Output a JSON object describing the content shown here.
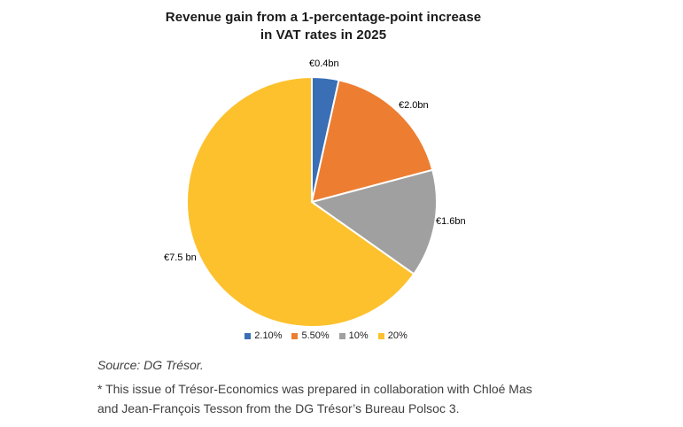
{
  "header": {
    "title_lines": [
      "Revenue gain from a 1-percentage-point increase",
      "in VAT rates in 2025"
    ]
  },
  "chart_data": {
    "type": "pie",
    "title": "Revenue gain from a 1-percentage-point increase in VAT rates in 2025",
    "unit": "EUR bn",
    "total": 11.5,
    "start_angle_deg": 0,
    "direction": "clockwise",
    "legend_position": "bottom",
    "slices": [
      {
        "label": "2.10%",
        "value": 0.4,
        "value_label": "€0.4bn",
        "color": "#3A6EB5"
      },
      {
        "label": "5.50%",
        "value": 2.0,
        "value_label": "€2.0bn",
        "color": "#ED7D31"
      },
      {
        "label": "10%",
        "value": 1.6,
        "value_label": "€1.6bn",
        "color": "#A0A0A0"
      },
      {
        "label": "20%",
        "value": 7.5,
        "value_label": "€7.5 bn",
        "color": "#FCC12D"
      }
    ]
  },
  "footer": {
    "source": "Source: DG Trésor.",
    "note_lines": [
      "* This issue of Trésor-Economics was prepared in collaboration with Chloé Mas",
      "and Jean-François Tesson from the DG Trésor’s Bureau Polsoc 3."
    ]
  }
}
